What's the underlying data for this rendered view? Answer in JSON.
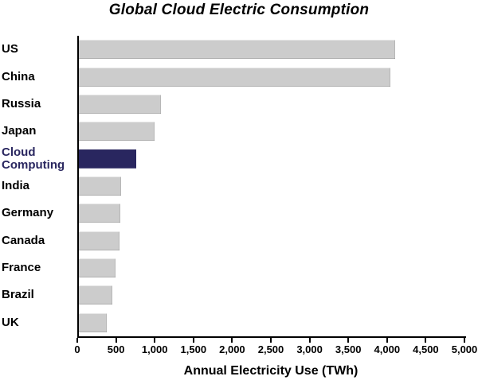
{
  "chart_data": {
    "type": "bar",
    "orientation": "horizontal",
    "title": "Global Cloud Electric Consumption",
    "xlabel": "Annual Electricity Use (TWh)",
    "ylabel": "",
    "unit": "TWh",
    "xlim": [
      0,
      5000
    ],
    "xticks": [
      0,
      500,
      1000,
      1500,
      2000,
      2500,
      3000,
      3500,
      4000,
      4500,
      5000
    ],
    "xtick_labels": [
      "0",
      "500",
      "1,000",
      "1,500",
      "2,000",
      "2,500",
      "3,000",
      "3,500",
      "4,000",
      "4,500",
      "5,000"
    ],
    "categories": [
      "US",
      "China",
      "Russia",
      "Japan",
      "Cloud Computing",
      "India",
      "Germany",
      "Canada",
      "France",
      "Brazil",
      "UK"
    ],
    "values": [
      4080,
      4020,
      1060,
      980,
      740,
      545,
      535,
      525,
      470,
      430,
      360
    ],
    "highlight": {
      "category": "Cloud Computing",
      "index": 4
    },
    "colors": {
      "bar": "#cccccc",
      "highlight": "#29265f",
      "axis": "#000000",
      "text": "#000000"
    },
    "grid": false,
    "legend": null
  }
}
